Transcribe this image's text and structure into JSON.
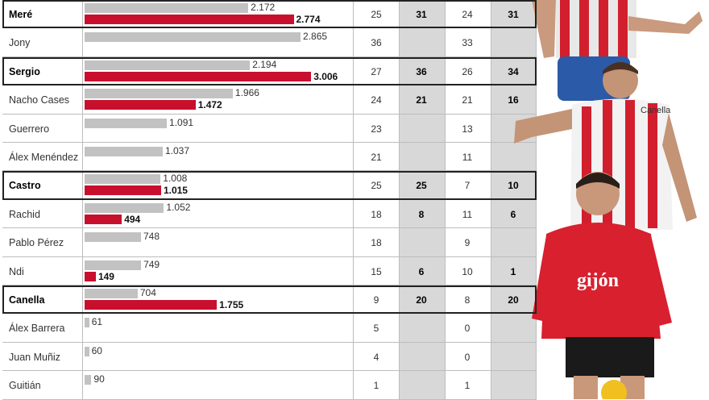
{
  "chart_data": {
    "type": "table",
    "columns": [
      "player",
      "value_2",
      "value_1",
      "c1",
      "c2",
      "c3",
      "c4"
    ],
    "rows": [
      {
        "name": "Meré",
        "highlight": true,
        "grey": "2.172",
        "grey_value": 2172,
        "red": "2.774",
        "red_value": 2774,
        "c1": "25",
        "c2": "31",
        "c3": "24",
        "c4": "31"
      },
      {
        "name": "Jony",
        "highlight": false,
        "grey": "2.865",
        "grey_value": 2865,
        "red": "",
        "red_value": 0,
        "c1": "36",
        "c2": "",
        "c3": "33",
        "c4": ""
      },
      {
        "name": "Sergio",
        "highlight": true,
        "grey": "2.194",
        "grey_value": 2194,
        "red": "3.006",
        "red_value": 3006,
        "c1": "27",
        "c2": "36",
        "c3": "26",
        "c4": "34"
      },
      {
        "name": "Nacho Cases",
        "highlight": false,
        "grey": "1.966",
        "grey_value": 1966,
        "red": "1.472",
        "red_value": 1472,
        "c1": "24",
        "c2": "21",
        "c3": "21",
        "c4": "16"
      },
      {
        "name": "Guerrero",
        "highlight": false,
        "grey": "1.091",
        "grey_value": 1091,
        "red": "",
        "red_value": 0,
        "c1": "23",
        "c2": "",
        "c3": "13",
        "c4": ""
      },
      {
        "name": "Álex Menéndez",
        "highlight": false,
        "grey": "1.037",
        "grey_value": 1037,
        "red": "",
        "red_value": 0,
        "c1": "21",
        "c2": "",
        "c3": "11",
        "c4": ""
      },
      {
        "name": "Castro",
        "highlight": true,
        "grey": "1.008",
        "grey_value": 1008,
        "red": "1.015",
        "red_value": 1015,
        "c1": "25",
        "c2": "25",
        "c3": "7",
        "c4": "10"
      },
      {
        "name": "Rachid",
        "highlight": false,
        "grey": "1.052",
        "grey_value": 1052,
        "red": "494",
        "red_value": 494,
        "c1": "18",
        "c2": "8",
        "c3": "11",
        "c4": "6"
      },
      {
        "name": "Pablo Pérez",
        "highlight": false,
        "grey": "748",
        "grey_value": 748,
        "red": "",
        "red_value": 0,
        "c1": "18",
        "c2": "",
        "c3": "9",
        "c4": ""
      },
      {
        "name": "Ndi",
        "highlight": false,
        "grey": "749",
        "grey_value": 749,
        "red": "149",
        "red_value": 149,
        "c1": "15",
        "c2": "6",
        "c3": "10",
        "c4": "1"
      },
      {
        "name": "Canella",
        "highlight": true,
        "grey": "704",
        "grey_value": 704,
        "red": "1.755",
        "red_value": 1755,
        "c1": "9",
        "c2": "20",
        "c3": "8",
        "c4": "20"
      },
      {
        "name": "Álex Barrera",
        "highlight": false,
        "grey": "61",
        "grey_value": 61,
        "red": "",
        "red_value": 0,
        "c1": "5",
        "c2": "",
        "c3": "0",
        "c4": ""
      },
      {
        "name": "Juan Muñiz",
        "highlight": false,
        "grey": "60",
        "grey_value": 60,
        "red": "",
        "red_value": 0,
        "c1": "4",
        "c2": "",
        "c3": "0",
        "c4": ""
      },
      {
        "name": "Guitián",
        "highlight": false,
        "grey": "90",
        "grey_value": 90,
        "red": "",
        "red_value": 0,
        "c1": "1",
        "c2": "",
        "c3": "1",
        "c4": ""
      }
    ],
    "bar_scale_max": 3100,
    "colors": {
      "grey_bar": "#c2c2c2",
      "red_bar": "#c8102e",
      "shade": "#d8d8d8"
    }
  },
  "caption": "Canella"
}
